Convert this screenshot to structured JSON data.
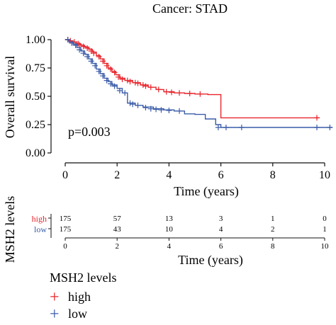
{
  "colors": {
    "high": "#e8242b",
    "low": "#3a5ca8",
    "axis": "#111111"
  },
  "chart_data": {
    "type": "line",
    "title": "Cancer: STAD",
    "ylabel": "Overall survival",
    "xlabel": "Time (years)",
    "annotation": "p=0.003",
    "xlim": [
      0,
      10
    ],
    "ylim": [
      0,
      1
    ],
    "x_ticks": [
      0,
      2,
      4,
      6,
      8,
      10
    ],
    "y_ticks": [
      "0.00",
      "0.25",
      "0.50",
      "0.75",
      "1.00"
    ],
    "y_tick_values": [
      0,
      0.25,
      0.5,
      0.75,
      1.0
    ],
    "series": [
      {
        "name": "high",
        "step": [
          [
            0,
            1.0
          ],
          [
            0.15,
            0.99
          ],
          [
            0.3,
            0.98
          ],
          [
            0.45,
            0.965
          ],
          [
            0.6,
            0.95
          ],
          [
            0.75,
            0.935
          ],
          [
            0.9,
            0.915
          ],
          [
            1.05,
            0.89
          ],
          [
            1.2,
            0.86
          ],
          [
            1.35,
            0.83
          ],
          [
            1.5,
            0.79
          ],
          [
            1.65,
            0.75
          ],
          [
            1.8,
            0.72
          ],
          [
            1.95,
            0.69
          ],
          [
            2.1,
            0.66
          ],
          [
            2.3,
            0.64
          ],
          [
            2.6,
            0.62
          ],
          [
            2.9,
            0.6
          ],
          [
            3.2,
            0.58
          ],
          [
            3.5,
            0.56
          ],
          [
            3.8,
            0.54
          ],
          [
            4.2,
            0.53
          ],
          [
            4.6,
            0.525
          ],
          [
            5.0,
            0.52
          ],
          [
            5.5,
            0.515
          ],
          [
            6.0,
            0.31
          ],
          [
            9.8,
            0.31
          ]
        ],
        "censors": [
          [
            0.1,
            1.0
          ],
          [
            0.2,
            0.99
          ],
          [
            0.35,
            0.98
          ],
          [
            0.5,
            0.965
          ],
          [
            0.55,
            0.955
          ],
          [
            0.7,
            0.94
          ],
          [
            0.85,
            0.925
          ],
          [
            1.0,
            0.9
          ],
          [
            1.1,
            0.88
          ],
          [
            1.3,
            0.85
          ],
          [
            1.45,
            0.81
          ],
          [
            1.6,
            0.77
          ],
          [
            1.75,
            0.74
          ],
          [
            1.9,
            0.71
          ],
          [
            2.05,
            0.67
          ],
          [
            2.2,
            0.65
          ],
          [
            2.4,
            0.64
          ],
          [
            2.5,
            0.63
          ],
          [
            2.7,
            0.62
          ],
          [
            2.8,
            0.615
          ],
          [
            3.0,
            0.6
          ],
          [
            3.1,
            0.59
          ],
          [
            3.3,
            0.58
          ],
          [
            3.6,
            0.56
          ],
          [
            3.9,
            0.54
          ],
          [
            4.1,
            0.535
          ],
          [
            4.4,
            0.53
          ],
          [
            4.8,
            0.525
          ],
          [
            5.2,
            0.52
          ],
          [
            9.7,
            0.31
          ]
        ]
      },
      {
        "name": "low",
        "step": [
          [
            0,
            1.0
          ],
          [
            0.15,
            0.98
          ],
          [
            0.3,
            0.96
          ],
          [
            0.45,
            0.93
          ],
          [
            0.6,
            0.9
          ],
          [
            0.75,
            0.87
          ],
          [
            0.9,
            0.83
          ],
          [
            1.05,
            0.79
          ],
          [
            1.2,
            0.74
          ],
          [
            1.35,
            0.7
          ],
          [
            1.5,
            0.66
          ],
          [
            1.65,
            0.63
          ],
          [
            1.8,
            0.6
          ],
          [
            2.0,
            0.57
          ],
          [
            2.2,
            0.53
          ],
          [
            2.4,
            0.44
          ],
          [
            2.7,
            0.42
          ],
          [
            3.0,
            0.405
          ],
          [
            3.4,
            0.39
          ],
          [
            3.8,
            0.38
          ],
          [
            4.2,
            0.37
          ],
          [
            4.6,
            0.345
          ],
          [
            5.0,
            0.34
          ],
          [
            5.4,
            0.3
          ],
          [
            5.8,
            0.25
          ],
          [
            6.0,
            0.225
          ],
          [
            10.3,
            0.225
          ]
        ],
        "censors": [
          [
            0.1,
            1.0
          ],
          [
            0.25,
            0.97
          ],
          [
            0.4,
            0.95
          ],
          [
            0.55,
            0.91
          ],
          [
            0.7,
            0.88
          ],
          [
            0.85,
            0.85
          ],
          [
            1.0,
            0.81
          ],
          [
            1.15,
            0.77
          ],
          [
            1.3,
            0.72
          ],
          [
            1.45,
            0.68
          ],
          [
            1.6,
            0.64
          ],
          [
            1.75,
            0.61
          ],
          [
            1.9,
            0.59
          ],
          [
            2.1,
            0.55
          ],
          [
            2.3,
            0.53
          ],
          [
            2.5,
            0.44
          ],
          [
            2.6,
            0.43
          ],
          [
            2.8,
            0.42
          ],
          [
            3.1,
            0.4
          ],
          [
            3.3,
            0.39
          ],
          [
            3.5,
            0.385
          ],
          [
            3.7,
            0.38
          ],
          [
            4.0,
            0.375
          ],
          [
            4.4,
            0.37
          ],
          [
            5.9,
            0.225
          ],
          [
            6.2,
            0.225
          ],
          [
            6.8,
            0.225
          ],
          [
            9.7,
            0.225
          ],
          [
            10.2,
            0.225
          ]
        ]
      }
    ]
  },
  "risk_table": {
    "ylabel": "MSH2 levels",
    "xlabel": "Time (years)",
    "x_ticks": [
      0,
      2,
      4,
      6,
      8,
      10
    ],
    "rows": [
      {
        "label": "high",
        "values": [
          "175",
          "57",
          "13",
          "3",
          "1",
          "0"
        ]
      },
      {
        "label": "low",
        "values": [
          "175",
          "43",
          "10",
          "4",
          "2",
          "1"
        ]
      }
    ]
  },
  "legend": {
    "title": "MSH2 levels",
    "items": [
      {
        "symbol": "+",
        "label": "high"
      },
      {
        "symbol": "+",
        "label": "low"
      }
    ]
  }
}
